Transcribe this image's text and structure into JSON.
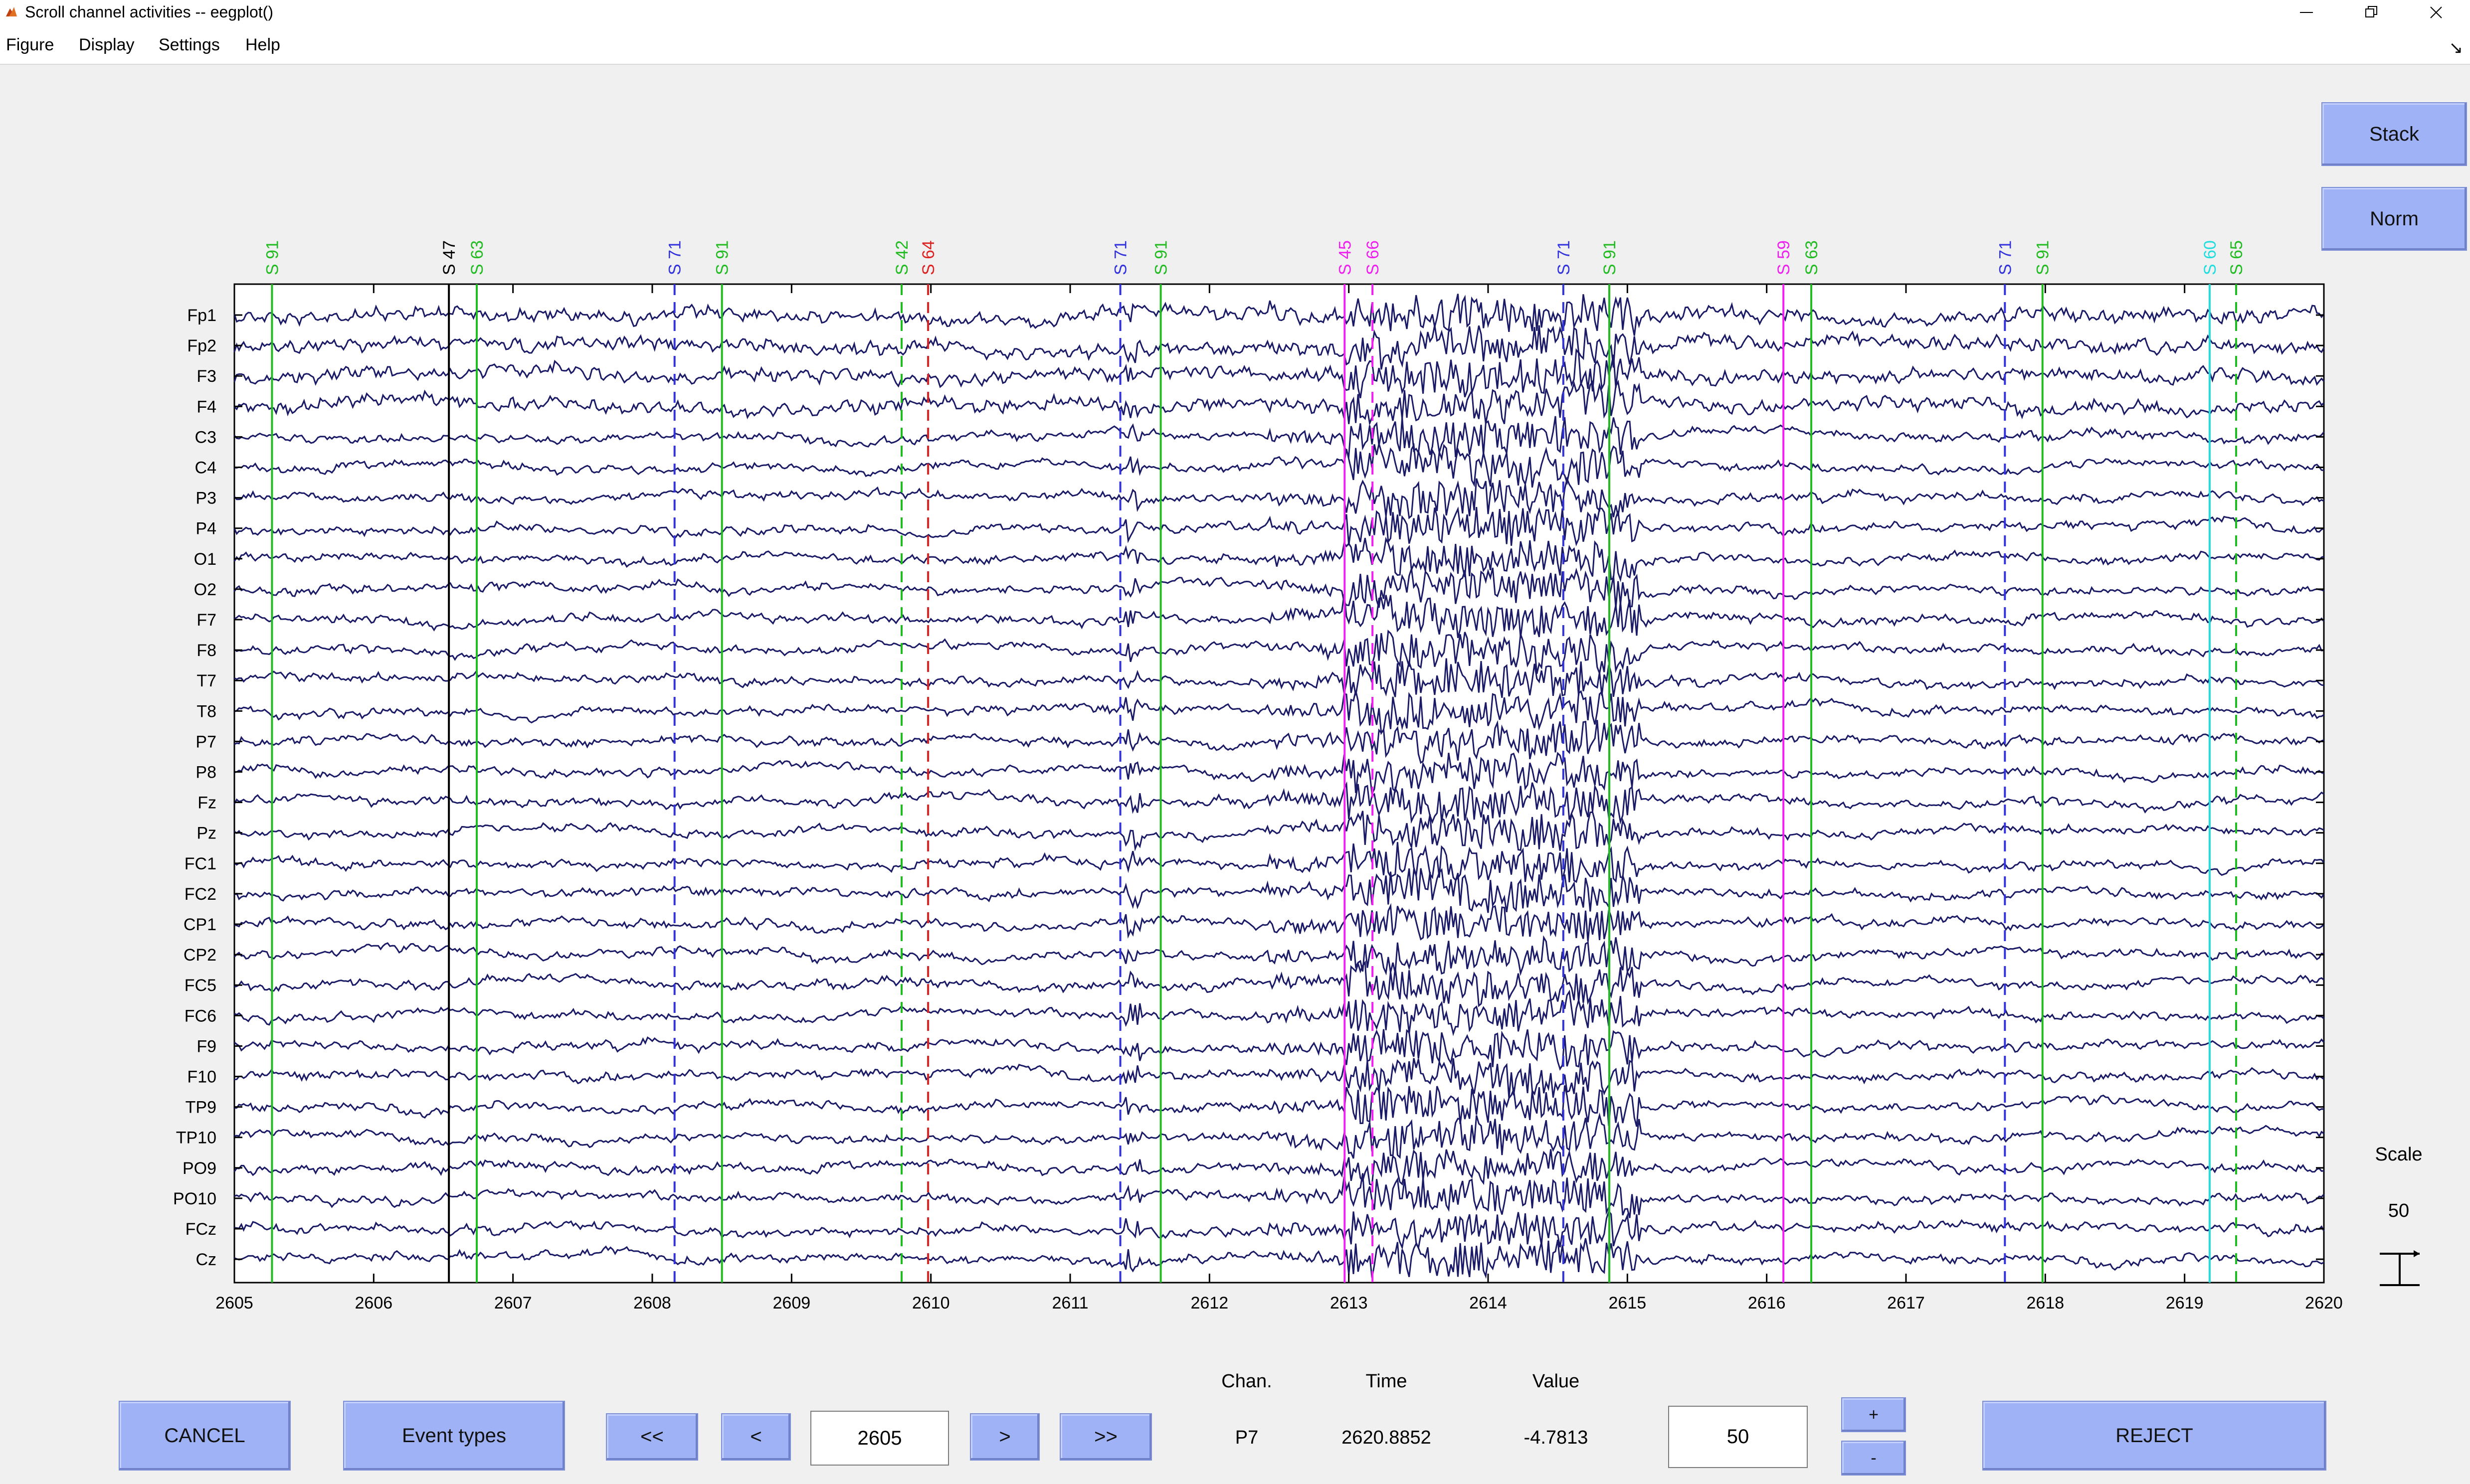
{
  "window": {
    "title": "Scroll channel activities -- eegplot()"
  },
  "menu": {
    "items": [
      "Figure",
      "Display",
      "Settings",
      "Help"
    ]
  },
  "buttons": {
    "stack": "Stack",
    "norm": "Norm",
    "cancel": "CANCEL",
    "event_types": "Event types",
    "first": "<<",
    "prev": "<",
    "next": ">",
    "last": ">>",
    "plus": "+",
    "minus": "-",
    "reject": "REJECT"
  },
  "nav": {
    "position_value": "2605",
    "spacing_value": "50"
  },
  "scale": {
    "label": "Scale",
    "value": "50"
  },
  "readout": {
    "chan_label": "Chan.",
    "time_label": "Time",
    "value_label": "Value",
    "chan": "P7",
    "time": "2620.8852",
    "value": "-4.7813"
  },
  "colors": {
    "trace": "#1a1a66",
    "button": "#9fb2f5",
    "background": "#f0f0f0"
  },
  "chart_data": {
    "type": "line",
    "xlim": [
      2605,
      2620
    ],
    "x_ticks": [
      2605,
      2606,
      2607,
      2608,
      2609,
      2610,
      2611,
      2612,
      2613,
      2614,
      2615,
      2616,
      2617,
      2618,
      2619,
      2620
    ],
    "channels": [
      "Fp1",
      "Fp2",
      "F3",
      "F4",
      "C3",
      "C4",
      "P3",
      "P4",
      "O1",
      "O2",
      "F7",
      "F8",
      "T7",
      "T8",
      "P7",
      "P8",
      "Fz",
      "Pz",
      "FC1",
      "FC2",
      "CP1",
      "CP2",
      "FC5",
      "FC6",
      "F9",
      "F10",
      "TP9",
      "TP10",
      "PO9",
      "PO10",
      "FCz",
      "Cz"
    ],
    "events": [
      {
        "label": "S 91",
        "time": 2605.27,
        "color": "#22bb22",
        "dashed": false
      },
      {
        "label": "S 47",
        "time": 2606.54,
        "color": "#000000",
        "dashed": false
      },
      {
        "label": "S 63",
        "time": 2606.74,
        "color": "#22bb22",
        "dashed": false
      },
      {
        "label": "S 71",
        "time": 2608.16,
        "color": "#3333dd",
        "dashed": true
      },
      {
        "label": "S 91",
        "time": 2608.5,
        "color": "#22bb22",
        "dashed": false
      },
      {
        "label": "S 42",
        "time": 2609.79,
        "color": "#22bb22",
        "dashed": true
      },
      {
        "label": "S 64",
        "time": 2609.98,
        "color": "#dd2222",
        "dashed": true
      },
      {
        "label": "S 71",
        "time": 2611.36,
        "color": "#3333dd",
        "dashed": true
      },
      {
        "label": "S 91",
        "time": 2611.65,
        "color": "#22bb22",
        "dashed": false
      },
      {
        "label": "S 45",
        "time": 2612.97,
        "color": "#ee22ee",
        "dashed": false
      },
      {
        "label": "S 66",
        "time": 2613.17,
        "color": "#ee22ee",
        "dashed": true
      },
      {
        "label": "S 71",
        "time": 2614.54,
        "color": "#3333dd",
        "dashed": true
      },
      {
        "label": "S 91",
        "time": 2614.87,
        "color": "#22bb22",
        "dashed": false
      },
      {
        "label": "S 59",
        "time": 2616.12,
        "color": "#ee22ee",
        "dashed": false
      },
      {
        "label": "S 63",
        "time": 2616.32,
        "color": "#22bb22",
        "dashed": false
      },
      {
        "label": "S 71",
        "time": 2617.71,
        "color": "#3333dd",
        "dashed": true
      },
      {
        "label": "S 91",
        "time": 2617.98,
        "color": "#22bb22",
        "dashed": false
      },
      {
        "label": "S 60",
        "time": 2619.18,
        "color": "#22dddd",
        "dashed": false
      },
      {
        "label": "S 65",
        "time": 2619.37,
        "color": "#22bb22",
        "dashed": true
      }
    ],
    "artifact_window": [
      2612.95,
      2615.1
    ],
    "grid": false
  }
}
